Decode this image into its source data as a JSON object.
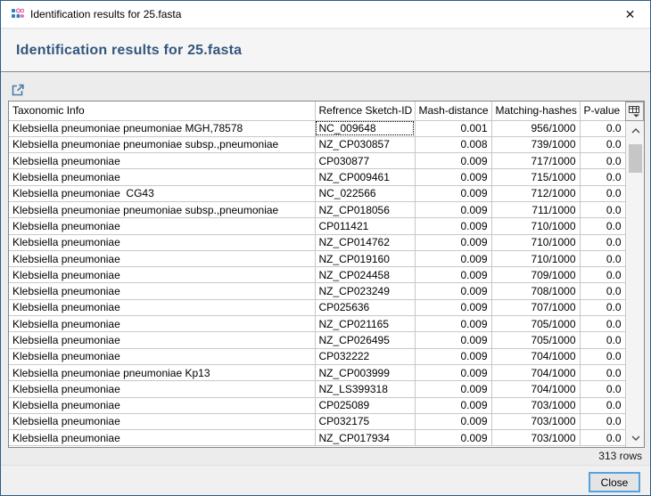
{
  "window": {
    "title": "Identification results for 25.fasta"
  },
  "icons": {
    "titlebar": "cluster-dots-icon",
    "close": "close-x-icon",
    "export": "export-arrow-icon",
    "column_picker": "column-picker-table-icon",
    "scroll_up": "chevron-up-icon",
    "scroll_down": "chevron-down-icon"
  },
  "colors": {
    "heading_text": "#33567e",
    "window_border": "#2e5c8a",
    "close_button_border": "#55a2e0",
    "icon_blue": "#2f7fc1",
    "icon_pink": "#e667a8"
  },
  "header": {
    "title": "Identification results for 25.fasta"
  },
  "table": {
    "columns": [
      "Taxonomic Info",
      "Refrence Sketch-ID",
      "Mash-distance",
      "Matching-hashes",
      "P-value"
    ],
    "rows": [
      {
        "taxon": "Klebsiella pneumoniae pneumoniae MGH,78578",
        "sketch_id": "NC_009648",
        "mash_distance": "0.001",
        "matching_hashes": "956/1000",
        "p_value": "0.0"
      },
      {
        "taxon": "Klebsiella pneumoniae pneumoniae subsp.,pneumoniae",
        "sketch_id": "NZ_CP030857",
        "mash_distance": "0.008",
        "matching_hashes": "739/1000",
        "p_value": "0.0"
      },
      {
        "taxon": "Klebsiella pneumoniae",
        "sketch_id": "CP030877",
        "mash_distance": "0.009",
        "matching_hashes": "717/1000",
        "p_value": "0.0"
      },
      {
        "taxon": "Klebsiella pneumoniae",
        "sketch_id": "NZ_CP009461",
        "mash_distance": "0.009",
        "matching_hashes": "715/1000",
        "p_value": "0.0"
      },
      {
        "taxon": "Klebsiella pneumoniae  CG43",
        "sketch_id": "NC_022566",
        "mash_distance": "0.009",
        "matching_hashes": "712/1000",
        "p_value": "0.0"
      },
      {
        "taxon": "Klebsiella pneumoniae pneumoniae subsp.,pneumoniae",
        "sketch_id": "NZ_CP018056",
        "mash_distance": "0.009",
        "matching_hashes": "711/1000",
        "p_value": "0.0"
      },
      {
        "taxon": "Klebsiella pneumoniae",
        "sketch_id": "CP011421",
        "mash_distance": "0.009",
        "matching_hashes": "710/1000",
        "p_value": "0.0"
      },
      {
        "taxon": "Klebsiella pneumoniae",
        "sketch_id": "NZ_CP014762",
        "mash_distance": "0.009",
        "matching_hashes": "710/1000",
        "p_value": "0.0"
      },
      {
        "taxon": "Klebsiella pneumoniae",
        "sketch_id": "NZ_CP019160",
        "mash_distance": "0.009",
        "matching_hashes": "710/1000",
        "p_value": "0.0"
      },
      {
        "taxon": "Klebsiella pneumoniae",
        "sketch_id": "NZ_CP024458",
        "mash_distance": "0.009",
        "matching_hashes": "709/1000",
        "p_value": "0.0"
      },
      {
        "taxon": "Klebsiella pneumoniae",
        "sketch_id": "NZ_CP023249",
        "mash_distance": "0.009",
        "matching_hashes": "708/1000",
        "p_value": "0.0"
      },
      {
        "taxon": "Klebsiella pneumoniae",
        "sketch_id": "CP025636",
        "mash_distance": "0.009",
        "matching_hashes": "707/1000",
        "p_value": "0.0"
      },
      {
        "taxon": "Klebsiella pneumoniae",
        "sketch_id": "NZ_CP021165",
        "mash_distance": "0.009",
        "matching_hashes": "705/1000",
        "p_value": "0.0"
      },
      {
        "taxon": "Klebsiella pneumoniae",
        "sketch_id": "NZ_CP026495",
        "mash_distance": "0.009",
        "matching_hashes": "705/1000",
        "p_value": "0.0"
      },
      {
        "taxon": "Klebsiella pneumoniae",
        "sketch_id": "CP032222",
        "mash_distance": "0.009",
        "matching_hashes": "704/1000",
        "p_value": "0.0"
      },
      {
        "taxon": "Klebsiella pneumoniae pneumoniae Kp13",
        "sketch_id": "NZ_CP003999",
        "mash_distance": "0.009",
        "matching_hashes": "704/1000",
        "p_value": "0.0"
      },
      {
        "taxon": "Klebsiella pneumoniae",
        "sketch_id": "NZ_LS399318",
        "mash_distance": "0.009",
        "matching_hashes": "704/1000",
        "p_value": "0.0"
      },
      {
        "taxon": "Klebsiella pneumoniae",
        "sketch_id": "CP025089",
        "mash_distance": "0.009",
        "matching_hashes": "703/1000",
        "p_value": "0.0"
      },
      {
        "taxon": "Klebsiella pneumoniae",
        "sketch_id": "CP032175",
        "mash_distance": "0.009",
        "matching_hashes": "703/1000",
        "p_value": "0.0"
      },
      {
        "taxon": "Klebsiella pneumoniae",
        "sketch_id": "NZ_CP017934",
        "mash_distance": "0.009",
        "matching_hashes": "703/1000",
        "p_value": "0.0"
      }
    ]
  },
  "footer": {
    "row_count": "313 rows",
    "close_label": "Close"
  }
}
